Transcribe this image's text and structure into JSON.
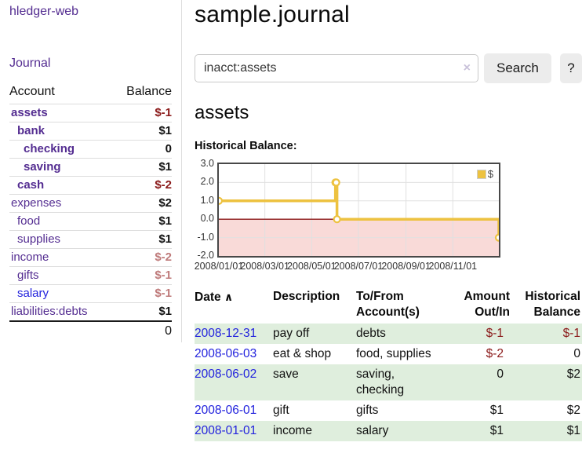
{
  "app": {
    "title": "hledger-web"
  },
  "sidebar": {
    "journal_label": "Journal",
    "accounts_table": {
      "account_header": "Account",
      "balance_header": "Balance",
      "rows": [
        {
          "name": "assets",
          "balance": "$-1",
          "indent": 1,
          "bold": true,
          "negative": "strong"
        },
        {
          "name": "bank",
          "balance": "$1",
          "indent": 2,
          "bold": true,
          "negative": "none"
        },
        {
          "name": "checking",
          "balance": "0",
          "indent": 3,
          "bold": true,
          "negative": "none"
        },
        {
          "name": "saving",
          "balance": "$1",
          "indent": 3,
          "bold": true,
          "negative": "none"
        },
        {
          "name": "cash",
          "balance": "$-2",
          "indent": 2,
          "bold": true,
          "negative": "strong"
        },
        {
          "name": "expenses",
          "balance": "$2",
          "indent": 1,
          "bold": false,
          "negative": "none"
        },
        {
          "name": "food",
          "balance": "$1",
          "indent": 2,
          "bold": false,
          "negative": "none"
        },
        {
          "name": "supplies",
          "balance": "$1",
          "indent": 2,
          "bold": false,
          "negative": "none"
        },
        {
          "name": "income",
          "balance": "$-2",
          "indent": 1,
          "bold": false,
          "negative": "soft"
        },
        {
          "name": "gifts",
          "balance": "$-1",
          "indent": 2,
          "bold": false,
          "negative": "soft"
        },
        {
          "name": "salary",
          "balance": "$-1",
          "indent": 2,
          "bold": false,
          "negative": "soft",
          "link_style": "unvisited"
        },
        {
          "name": "liabilities:debts",
          "balance": "$1",
          "indent": 1,
          "bold": false,
          "negative": "none"
        }
      ],
      "total": "0"
    }
  },
  "main": {
    "title": "sample.journal",
    "search": {
      "value": "inacct:assets",
      "clear_icon": "×",
      "button_label": "Search",
      "help_label": "?"
    },
    "account_heading": "assets"
  },
  "chart_data": {
    "type": "line",
    "title": "Historical Balance:",
    "steps": true,
    "series": [
      {
        "name": "$",
        "color": "#edc240",
        "points": [
          {
            "date": "2008-01-01",
            "value": 1
          },
          {
            "date": "2008-06-01",
            "value": 2
          },
          {
            "date": "2008-06-02",
            "value": 2
          },
          {
            "date": "2008-06-03",
            "value": 0
          },
          {
            "date": "2008-12-31",
            "value": -1
          }
        ]
      }
    ],
    "x_ticks": [
      "2008/01/01",
      "2008/03/01",
      "2008/05/01",
      "2008/07/01",
      "2008/09/01",
      "2008/11/01"
    ],
    "y_ticks": [
      "3.0",
      "2.0",
      "1.0",
      "0.0",
      "-1.0",
      "-2.0"
    ],
    "ylim": [
      -2,
      3
    ],
    "total_days": 365,
    "grid": true,
    "grid_color": "#e0e0e0",
    "negative_region_color": "#f9dad8",
    "zero_line_color": "#8b1a1a",
    "legend_position": "top-right"
  },
  "register": {
    "sort_icon": "∧",
    "headers": {
      "date": "Date",
      "description": "Description",
      "accounts": "To/From Account(s)",
      "amount": "Amount Out/In",
      "balance": "Historical Balance"
    },
    "rows": [
      {
        "date": "2008-12-31",
        "description": "pay off",
        "accounts": "debts",
        "amount": "$-1",
        "balance": "$-1"
      },
      {
        "date": "2008-06-03",
        "description": "eat & shop",
        "accounts": "food, supplies",
        "amount": "$-2",
        "balance": "0"
      },
      {
        "date": "2008-06-02",
        "description": "save",
        "accounts": "saving, checking",
        "amount": "0",
        "balance": "$2"
      },
      {
        "date": "2008-06-01",
        "description": "gift",
        "accounts": "gifts",
        "amount": "$1",
        "balance": "$2"
      },
      {
        "date": "2008-01-01",
        "description": "income",
        "accounts": "salary",
        "amount": "$1",
        "balance": "$1"
      }
    ]
  },
  "colors": {
    "link_purple": "#542d91",
    "link_blue": "#2222dd",
    "negative_strong": "#8b1a1a",
    "negative_soft": "#bf7b7b",
    "row_green": "#dfeedd",
    "series_yellow": "#edc240",
    "button_bg": "#ececec"
  }
}
